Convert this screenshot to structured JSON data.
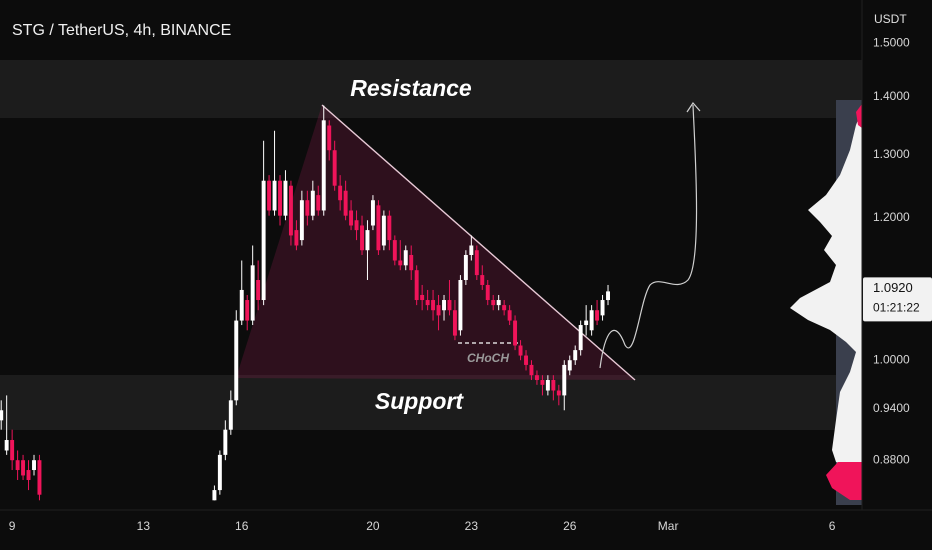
{
  "chart_data": {
    "type": "candlestick",
    "title": "STG / TetherUS, 4h, BINANCE",
    "y_label": "USDT",
    "log_scale": true,
    "grid": false,
    "up_color": "#ffffff",
    "down_color": "#f0145a",
    "xlim": [
      8.63,
      34.91
    ],
    "xticks": [
      9,
      13,
      16,
      20,
      23,
      26,
      {
        "value": 29,
        "label": "Mar"
      },
      {
        "value": 34,
        "label": "6"
      }
    ],
    "ylim": [
      0.831,
      1.585
    ],
    "yticks": [
      {
        "value": 1.5,
        "label": "1.5000"
      },
      {
        "value": 1.4,
        "label": "1.4000"
      },
      {
        "value": 1.3,
        "label": "1.3000"
      },
      {
        "value": 1.2,
        "label": "1.2000"
      },
      {
        "value": 1,
        "label": "1.0000"
      },
      {
        "value": 0.94,
        "label": "0.9400"
      },
      {
        "value": 0.88,
        "label": "0.8800"
      }
    ],
    "last_price": {
      "value": 1.092,
      "label": "1.0920"
    },
    "countdown": "01:21:22",
    "annotations": [
      "Resistance",
      "Support",
      "CHoCH"
    ],
    "x": [
      8.667,
      8.833,
      9,
      9.167,
      9.333,
      9.5,
      9.667,
      9.833,
      15.167,
      15.333,
      15.5,
      15.667,
      15.833,
      16,
      16.167,
      16.333,
      16.5,
      16.667,
      16.833,
      17,
      17.167,
      17.333,
      17.5,
      17.667,
      17.833,
      18,
      18.167,
      18.333,
      18.5,
      18.667,
      18.833,
      19,
      19.167,
      19.333,
      19.5,
      19.667,
      19.833,
      20,
      20.167,
      20.333,
      20.5,
      20.667,
      20.833,
      21,
      21.167,
      21.333,
      21.5,
      21.667,
      21.833,
      22,
      22.167,
      22.333,
      22.5,
      22.667,
      22.833,
      23,
      23.167,
      23.333,
      23.5,
      23.667,
      23.833,
      24,
      24.167,
      24.333,
      24.5,
      24.667,
      24.833,
      25,
      25.167,
      25.333,
      25.5,
      25.667,
      25.833,
      26,
      26.167,
      26.333,
      26.5,
      26.667,
      26.833,
      27,
      27.167
    ],
    "open": [
      0.926,
      0.891,
      0.903,
      0.88,
      0.88,
      0.869,
      0.869,
      0.88,
      0.836,
      0.847,
      0.886,
      0.915,
      0.95,
      1.052,
      1.08,
      1.052,
      1.108,
      1.08,
      1.258,
      1.211,
      1.258,
      1.203,
      1.25,
      1.181,
      1.166,
      1.227,
      1.203,
      1.235,
      1.211,
      1.35,
      1.308,
      1.25,
      1.242,
      1.211,
      1.196,
      1.188,
      1.151,
      1.188,
      1.219,
      1.158,
      1.203,
      1.166,
      1.136,
      1.129,
      1.144,
      1.122,
      1.087,
      1.08,
      1.08,
      1.073,
      1.066,
      1.08,
      1.066,
      1.039,
      1.108,
      1.144,
      1.151,
      1.115,
      1.101,
      1.08,
      1.073,
      1.073,
      1.066,
      1.052,
      1.019,
      1.006,
      0.994,
      0.981,
      0.975,
      0.962,
      0.975,
      0.962,
      0.956,
      0.987,
      1.0,
      1.013,
      1.046,
      1.039,
      1.066,
      1.059,
      1.08
    ],
    "high": [
      0.95,
      0.956,
      0.915,
      0.891,
      0.886,
      0.88,
      0.886,
      0.886,
      0.852,
      0.891,
      0.926,
      0.962,
      1.066,
      1.136,
      1.087,
      1.158,
      1.136,
      1.324,
      1.267,
      1.341,
      1.267,
      1.275,
      1.258,
      1.196,
      1.242,
      1.242,
      1.258,
      1.25,
      1.385,
      1.359,
      1.324,
      1.267,
      1.258,
      1.227,
      1.211,
      1.203,
      1.196,
      1.235,
      1.227,
      1.211,
      1.211,
      1.173,
      1.166,
      1.158,
      1.158,
      1.129,
      1.101,
      1.094,
      1.094,
      1.087,
      1.087,
      1.108,
      1.08,
      1.115,
      1.151,
      1.173,
      1.158,
      1.129,
      1.108,
      1.087,
      1.087,
      1.08,
      1.073,
      1.059,
      1.026,
      1.013,
      1.0,
      0.987,
      0.981,
      0.981,
      0.981,
      0.969,
      1.0,
      1.006,
      1.019,
      1.052,
      1.073,
      1.073,
      1.08,
      1.087,
      1.101
    ],
    "low": [
      0.915,
      0.886,
      0.869,
      0.858,
      0.858,
      0.847,
      0.863,
      0.836,
      0.836,
      0.842,
      0.88,
      0.909,
      0.944,
      1.046,
      1.039,
      1.046,
      1.066,
      1.073,
      1.203,
      1.203,
      1.188,
      1.196,
      1.158,
      1.151,
      1.158,
      1.188,
      1.196,
      1.203,
      1.203,
      1.291,
      1.242,
      1.211,
      1.196,
      1.181,
      1.166,
      1.144,
      1.108,
      1.181,
      1.144,
      1.151,
      1.151,
      1.129,
      1.122,
      1.122,
      1.108,
      1.073,
      1.066,
      1.066,
      1.052,
      1.039,
      1.052,
      1.059,
      1.026,
      1.032,
      1.101,
      1.136,
      1.108,
      1.094,
      1.073,
      1.066,
      1.066,
      1.059,
      1.046,
      1.013,
      1.0,
      0.987,
      0.975,
      0.969,
      0.956,
      0.956,
      0.95,
      0.944,
      0.938,
      0.981,
      0.994,
      1.006,
      1.032,
      1.032,
      1.046,
      1.052,
      1.073
    ],
    "close": [
      0.938,
      0.903,
      0.88,
      0.869,
      0.863,
      0.858,
      0.88,
      0.842,
      0.847,
      0.886,
      0.915,
      0.95,
      1.052,
      1.094,
      1.052,
      1.129,
      1.08,
      1.258,
      1.211,
      1.258,
      1.203,
      1.258,
      1.173,
      1.158,
      1.227,
      1.203,
      1.242,
      1.211,
      1.359,
      1.308,
      1.25,
      1.227,
      1.203,
      1.188,
      1.181,
      1.151,
      1.181,
      1.227,
      1.151,
      1.203,
      1.166,
      1.136,
      1.129,
      1.151,
      1.122,
      1.08,
      1.08,
      1.073,
      1.066,
      1.059,
      1.08,
      1.066,
      1.032,
      1.108,
      1.144,
      1.158,
      1.115,
      1.101,
      1.08,
      1.073,
      1.08,
      1.066,
      1.052,
      1.019,
      1.006,
      0.994,
      0.981,
      0.975,
      0.969,
      0.975,
      0.962,
      0.956,
      0.994,
      1.0,
      1.013,
      1.046,
      1.052,
      1.066,
      1.052,
      1.08,
      1.092
    ]
  }
}
